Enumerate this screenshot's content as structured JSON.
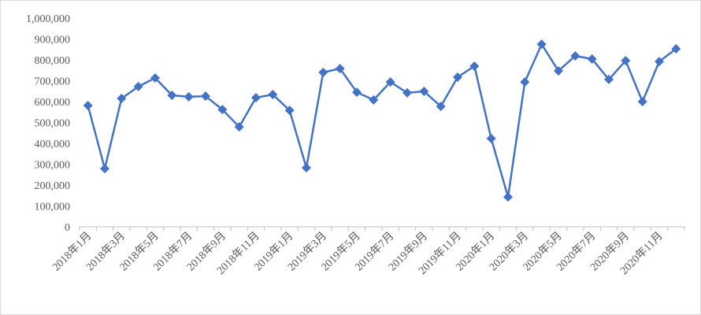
{
  "chart_data": {
    "type": "line",
    "title": "",
    "xlabel": "",
    "ylabel": "",
    "ylim": [
      0,
      1000000
    ],
    "y_ticks": [
      "0",
      "100,000",
      "200,000",
      "300,000",
      "400,000",
      "500,000",
      "600,000",
      "700,000",
      "800,000",
      "900,000",
      "1,000,000"
    ],
    "grid": false,
    "legend": "none",
    "color": "#4472c4",
    "marker": "diamond",
    "categories": [
      "2018年1月",
      "2018年2月",
      "2018年3月",
      "2018年4月",
      "2018年5月",
      "2018年6月",
      "2018年7月",
      "2018年8月",
      "2018年9月",
      "2018年10月",
      "2018年11月",
      "2018年12月",
      "2019年1月",
      "2019年2月",
      "2019年3月",
      "2019年4月",
      "2019年5月",
      "2019年6月",
      "2019年7月",
      "2019年8月",
      "2019年9月",
      "2019年10月",
      "2019年11月",
      "2019年12月",
      "2020年1月",
      "2020年2月",
      "2020年3月",
      "2020年4月",
      "2020年5月",
      "2020年6月",
      "2020年7月",
      "2020年8月",
      "2020年9月",
      "2020年10月",
      "2020年11月",
      "2020年12月"
    ],
    "x_tick_labels": [
      "2018年1月",
      "2018年3月",
      "2018年5月",
      "2018年7月",
      "2018年9月",
      "2018年11月",
      "2019年1月",
      "2019年3月",
      "2019年5月",
      "2019年7月",
      "2019年9月",
      "2019年11月",
      "2020年1月",
      "2020年3月",
      "2020年5月",
      "2020年7月",
      "2020年9月",
      "2020年11月"
    ],
    "values": [
      581000,
      279000,
      615000,
      672000,
      713000,
      630000,
      623000,
      626000,
      562000,
      479000,
      619000,
      634000,
      558000,
      283000,
      740000,
      758000,
      645000,
      608000,
      694000,
      642000,
      649000,
      577000,
      717000,
      770000,
      423000,
      143000,
      694000,
      875000,
      747000,
      819000,
      804000,
      706000,
      796000,
      600000,
      792000,
      853000
    ]
  }
}
